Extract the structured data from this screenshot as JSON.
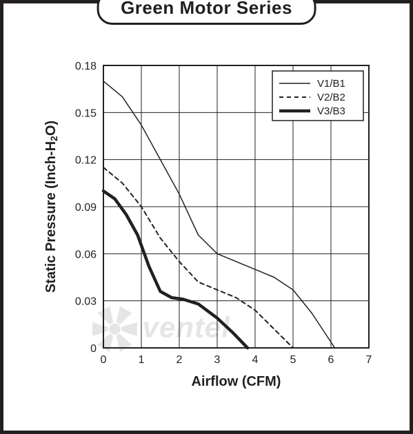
{
  "title": "Green Motor Series",
  "chart": {
    "type": "line",
    "background_color": "#ffffff",
    "border_color": "#231f20",
    "grid_color": "#231f20",
    "grid_width": 1,
    "xlabel": "Airflow (CFM)",
    "ylabel": "Static Pressure (Inch-H₂O)",
    "label_fontsize": 20,
    "tick_fontsize": 16,
    "xlim": [
      0,
      7
    ],
    "ylim": [
      0,
      0.18
    ],
    "xticks": [
      0,
      1,
      2,
      3,
      4,
      5,
      6,
      7
    ],
    "yticks": [
      0,
      0.03,
      0.06,
      0.09,
      0.12,
      0.15,
      0.18
    ],
    "legend": {
      "position": "top-right",
      "border_color": "#231f20",
      "items": [
        {
          "label": "V1/B1",
          "style": "solid-thin"
        },
        {
          "label": "V2/B2",
          "style": "dashed"
        },
        {
          "label": "V3/B3",
          "style": "solid-thick"
        }
      ]
    },
    "series": [
      {
        "name": "V1/B1",
        "line_color": "#231f20",
        "line_width": 1.5,
        "dash": "none",
        "points": [
          [
            0,
            0.17
          ],
          [
            0.5,
            0.16
          ],
          [
            1,
            0.142
          ],
          [
            1.5,
            0.12
          ],
          [
            2,
            0.098
          ],
          [
            2.5,
            0.072
          ],
          [
            3,
            0.06
          ],
          [
            3.5,
            0.055
          ],
          [
            4,
            0.05
          ],
          [
            4.5,
            0.045
          ],
          [
            5,
            0.037
          ],
          [
            5.5,
            0.022
          ],
          [
            6.1,
            0
          ]
        ]
      },
      {
        "name": "V2/B2",
        "line_color": "#231f20",
        "line_width": 2,
        "dash": "6,5",
        "points": [
          [
            0,
            0.115
          ],
          [
            0.5,
            0.105
          ],
          [
            1,
            0.09
          ],
          [
            1.5,
            0.07
          ],
          [
            2,
            0.055
          ],
          [
            2.5,
            0.042
          ],
          [
            3,
            0.037
          ],
          [
            3.5,
            0.032
          ],
          [
            4,
            0.024
          ],
          [
            4.5,
            0.012
          ],
          [
            5,
            0
          ]
        ]
      },
      {
        "name": "V3/B3",
        "line_color": "#231f20",
        "line_width": 4.5,
        "dash": "none",
        "points": [
          [
            0,
            0.1
          ],
          [
            0.3,
            0.095
          ],
          [
            0.6,
            0.085
          ],
          [
            0.9,
            0.072
          ],
          [
            1.2,
            0.052
          ],
          [
            1.5,
            0.036
          ],
          [
            1.8,
            0.032
          ],
          [
            2.1,
            0.031
          ],
          [
            2.5,
            0.028
          ],
          [
            3.0,
            0.019
          ],
          [
            3.4,
            0.01
          ],
          [
            3.8,
            0
          ]
        ]
      }
    ]
  },
  "watermark": {
    "text": "ventel",
    "color": "#d0d0d0",
    "opacity": 0.55,
    "fontsize": 42
  }
}
